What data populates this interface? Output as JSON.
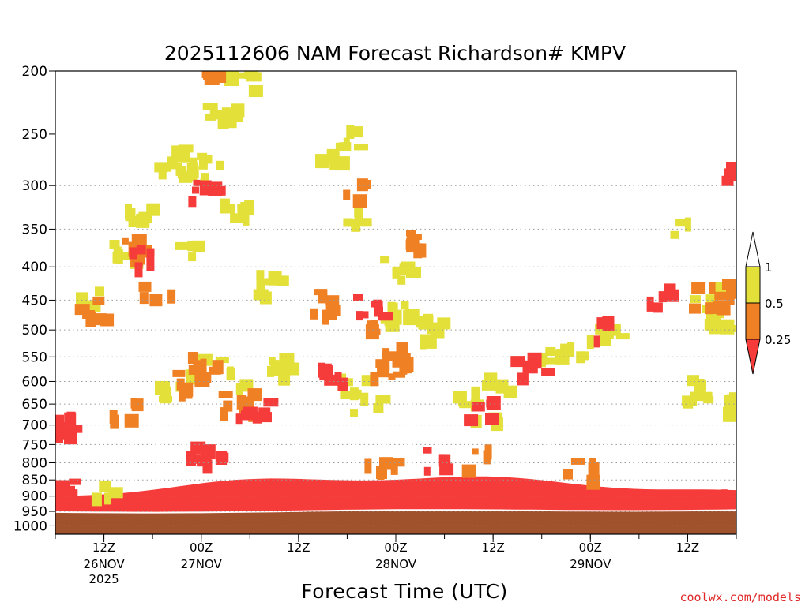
{
  "chart_data": {
    "type": "heatmap",
    "title": "2025112606 NAM Forecast Richardson# KMPV",
    "xlabel": "Forecast Time (UTC)",
    "ylabel": "",
    "y_scale": "log-pressure (inverted)",
    "ylim": [
      1030,
      200
    ],
    "y_ticks": [
      200,
      250,
      300,
      350,
      400,
      450,
      500,
      550,
      600,
      650,
      700,
      750,
      800,
      850,
      900,
      950,
      1000
    ],
    "y_tick_labels": [
      "200",
      "250",
      "300",
      "350",
      "400",
      "450",
      "500",
      "550",
      "600",
      "650",
      "700",
      "750",
      "800",
      "850",
      "900",
      "950",
      "1000"
    ],
    "gridlines": "dotted horizontal at 300, 400, 450, 500, 550, 600, 650, 700, 750, 800, 850, 900, 950, 1000 hPa",
    "x_start": "2025-11-26 06Z",
    "x_end": "2025-11-29 18Z",
    "x_ticks": [
      {
        "time": "2025-11-26 12Z",
        "label": "12Z",
        "date": "26NOV",
        "year": "2025"
      },
      {
        "time": "2025-11-27 00Z",
        "label": "00Z",
        "date": "27NOV",
        "year": ""
      },
      {
        "time": "2025-11-27 12Z",
        "label": "12Z",
        "date": "",
        "year": ""
      },
      {
        "time": "2025-11-28 00Z",
        "label": "00Z",
        "date": "28NOV",
        "year": ""
      },
      {
        "time": "2025-11-28 12Z",
        "label": "12Z",
        "date": "",
        "year": ""
      },
      {
        "time": "2025-11-29 00Z",
        "label": "00Z",
        "date": "29NOV",
        "year": ""
      },
      {
        "time": "2025-11-29 12Z",
        "label": "12Z",
        "date": "",
        "year": ""
      }
    ],
    "colorbar": {
      "levels": [
        "1",
        "0.5",
        "0.25"
      ],
      "bins": [
        {
          "range": "> 1",
          "color": "#ffffff"
        },
        {
          "range": "0.5 - 1",
          "color": "#e3e03a"
        },
        {
          "range": "0.25 - 0.5",
          "color": "#f08024"
        },
        {
          "range": "< 0.25",
          "color": "#f63c3a"
        }
      ]
    },
    "ground_color": "#a0522d",
    "regions": [
      {
        "bin": "0.5 - 1",
        "points": [
          [
            "2025-11-26 20Z",
            275
          ],
          [
            "2025-11-26 22Z",
            270
          ],
          [
            "2025-11-27 00Z",
            285
          ],
          [
            "2025-11-26 16Z",
            330
          ],
          [
            "2025-11-26 10Z",
            445
          ],
          [
            "2025-11-26 14Z",
            370
          ],
          [
            "2025-11-26 22Z",
            370
          ],
          [
            "2025-11-27 04Z",
            320
          ],
          [
            "2025-11-27 00Z",
            560
          ],
          [
            "2025-11-26 20Z",
            610
          ],
          [
            "2025-11-27 04Z",
            580
          ],
          [
            "2025-11-27 08Z",
            420
          ],
          [
            "2025-11-27 16Z",
            260
          ],
          [
            "2025-11-27 18Z",
            250
          ],
          [
            "2025-11-27 18Z",
            330
          ],
          [
            "2025-11-28 00Z",
            400
          ],
          [
            "2025-11-28 00Z",
            470
          ],
          [
            "2025-11-28 04Z",
            490
          ],
          [
            "2025-11-27 18Z",
            600
          ],
          [
            "2025-11-27 20Z",
            640
          ],
          [
            "2025-11-28 08Z",
            620
          ],
          [
            "2025-11-28 12Z",
            600
          ],
          [
            "2025-11-28 18Z",
            550
          ],
          [
            "2025-11-28 22Z",
            520
          ],
          [
            "2025-11-29 02Z",
            500
          ],
          [
            "2025-11-29 10Z",
            340
          ],
          [
            "2025-11-29 14Z",
            440
          ],
          [
            "2025-11-29 16Z",
            480
          ],
          [
            "2025-11-29 18Z",
            650
          ],
          [
            "2025-11-29 12Z",
            610
          ],
          [
            "2025-11-27 02Z",
            225
          ],
          [
            "2025-11-27 04Z",
            205
          ],
          [
            "2025-11-26 12Z",
            870
          ],
          [
            "2025-11-27 10Z",
            560
          ],
          [
            "2025-11-28 10Z",
            660
          ]
        ]
      },
      {
        "bin": "0.25 - 0.5",
        "points": [
          [
            "2025-11-27 02Z",
            200
          ],
          [
            "2025-11-26 16Z",
            370
          ],
          [
            "2025-11-26 10Z",
            455
          ],
          [
            "2025-11-26 18Z",
            430
          ],
          [
            "2025-11-27 14Z",
            450
          ],
          [
            "2025-11-27 18Z",
            300
          ],
          [
            "2025-11-27 20Z",
            480
          ],
          [
            "2025-11-27 22Z",
            560
          ],
          [
            "2025-11-28 00Z",
            540
          ],
          [
            "2025-11-26 22Z",
            600
          ],
          [
            "2025-11-27 04Z",
            640
          ],
          [
            "2025-11-28 02Z",
            360
          ],
          [
            "2025-11-27 00Z",
            550
          ],
          [
            "2025-11-27 22Z",
            790
          ],
          [
            "2025-11-28 10Z",
            780
          ],
          [
            "2025-11-28 22Z",
            820
          ],
          [
            "2025-11-29 14Z",
            440
          ],
          [
            "2025-11-29 18Z",
            430
          ],
          [
            "2025-11-26 14Z",
            650
          ]
        ]
      },
      {
        "bin": "< 0.25",
        "points": [
          [
            "2025-11-27 00Z",
            305
          ],
          [
            "2025-11-26 16Z",
            380
          ],
          [
            "2025-11-27 20Z",
            450
          ],
          [
            "2025-11-27 16Z",
            570
          ],
          [
            "2025-11-27 00Z",
            770
          ],
          [
            "2025-11-28 04Z",
            780
          ],
          [
            "2025-11-28 10Z",
            650
          ],
          [
            "2025-11-28 16Z",
            560
          ],
          [
            "2025-11-29 00Z",
            490
          ],
          [
            "2025-11-29 08Z",
            440
          ],
          [
            "2025-11-29 18Z",
            280
          ],
          [
            "2025-11-26 06Z",
            690
          ],
          [
            "2025-11-27 06Z",
            650
          ],
          [
            "2025-11-26 06Z",
            880
          ],
          [
            "2025-11-29 18Z",
            880
          ]
        ]
      }
    ],
    "low_level_layer": {
      "bin": "< 0.25",
      "description": "continuous layer from ~850-900 hPa down to ground"
    }
  },
  "credit": "coolwx.com/models"
}
